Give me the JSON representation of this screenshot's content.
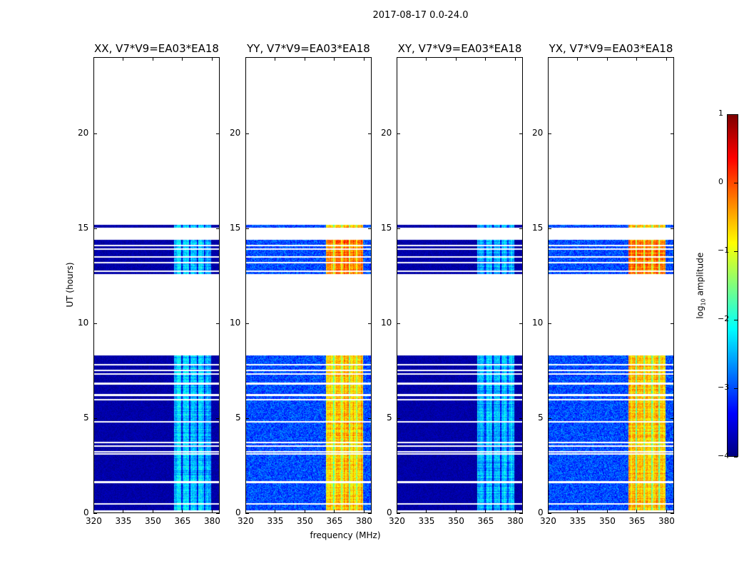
{
  "chart_data": {
    "type": "heatmap",
    "title": "2017-08-17 0.0-24.0",
    "xlabel": "frequency (MHz)",
    "ylabel": "UT (hours)",
    "xlim": [
      320,
      384
    ],
    "ylim": [
      0,
      24
    ],
    "xticks": [
      320,
      335,
      350,
      365,
      380
    ],
    "yticks": [
      0,
      5,
      10,
      15,
      20
    ],
    "colormap": "jet",
    "colorbar": {
      "label_main": "log",
      "label_sub": "10",
      "label_rest": " amplitude",
      "range": [
        -4,
        1
      ],
      "ticks": [
        1,
        0,
        -1,
        -2,
        -3,
        -4
      ]
    },
    "time_segments_hours": [
      [
        0.1,
        8.3
      ],
      [
        12.6,
        14.4
      ],
      [
        15.05,
        15.2
      ]
    ],
    "gap_hours": [
      0.45,
      1.6,
      3.1,
      3.2,
      3.5,
      3.7,
      4.8,
      5.95,
      6.2,
      6.8,
      7.3,
      7.5,
      7.8,
      12.75,
      13.2,
      13.5,
      13.9,
      14.1
    ],
    "band_mhz": [
      361,
      380
    ],
    "band_columns_mhz": [
      [
        361,
        364.5
      ],
      [
        365.5,
        368.5
      ],
      [
        369.5,
        372.5
      ],
      [
        373.5,
        376.5
      ],
      [
        377,
        380
      ]
    ],
    "panels": [
      {
        "title": "XX, V7*V9=EA03*EA18",
        "background_log_amp": -3.8,
        "band_log_amp": -2.4,
        "noise": 0.15
      },
      {
        "title": "YY, V7*V9=EA03*EA18",
        "background_log_amp": -3.0,
        "band_log_amp": -0.6,
        "noise": 0.45
      },
      {
        "title": "XY, V7*V9=EA03*EA18",
        "background_log_amp": -3.8,
        "band_log_amp": -2.5,
        "noise": 0.15
      },
      {
        "title": "YX, V7*V9=EA03*EA18",
        "background_log_amp": -3.0,
        "band_log_amp": -0.6,
        "noise": 0.45
      }
    ]
  }
}
